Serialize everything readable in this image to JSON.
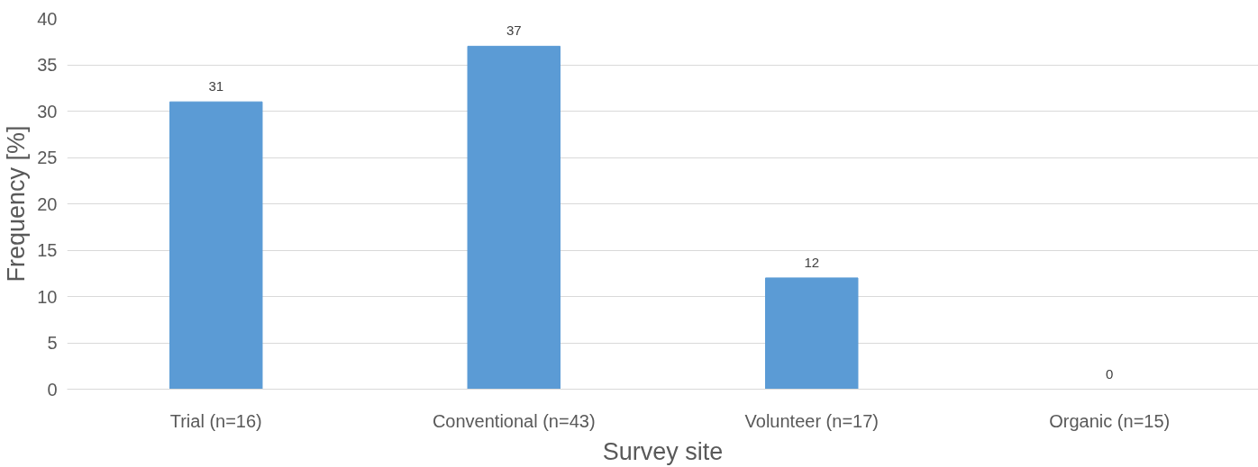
{
  "chart_data": {
    "type": "bar",
    "xlabel": "Survey site",
    "ylabel": "Frequency [%]",
    "categories": [
      "Trial (n=16)",
      "Conventional (n=43)",
      "Volunteer (n=17)",
      "Organic (n=15)"
    ],
    "values": [
      31,
      37,
      12,
      0
    ],
    "color": "#5b9bd5",
    "ylim": [
      0,
      40
    ],
    "yticks": [
      0,
      5,
      10,
      15,
      20,
      25,
      30,
      35,
      40
    ],
    "grid": "y",
    "data_labels": true
  }
}
